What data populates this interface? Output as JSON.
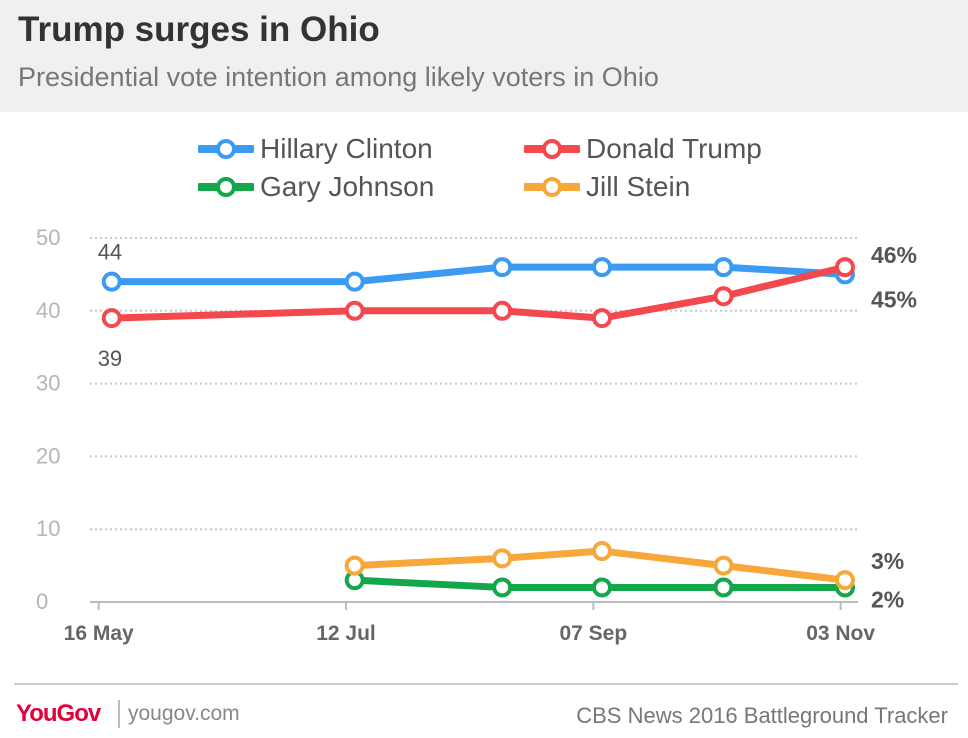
{
  "header": {
    "title": "Trump surges in Ohio",
    "subtitle": "Presidential vote intention among likely voters in Ohio"
  },
  "footer": {
    "logo": "YouGov",
    "site": "yougov.com",
    "source": "CBS News 2016 Battleground Tracker"
  },
  "chart_data": {
    "type": "line",
    "title": "Trump surges in Ohio",
    "subtitle": "Presidential vote intention among likely voters in Ohio",
    "xlabel": "",
    "ylabel": "",
    "ylim": [
      0,
      50
    ],
    "yticks": [
      0,
      10,
      20,
      30,
      40,
      50
    ],
    "grid": true,
    "legend_position": "top",
    "x_ticks": [
      {
        "label": "16 May",
        "date": "2016-05-16"
      },
      {
        "label": "12 Jul",
        "date": "2016-07-12"
      },
      {
        "label": "07 Sep",
        "date": "2016-09-07"
      },
      {
        "label": "03 Nov",
        "date": "2016-11-03"
      }
    ],
    "series": [
      {
        "name": "Hillary Clinton",
        "color": "#3b9af2",
        "points": [
          {
            "date": "2016-05-19",
            "value": 44
          },
          {
            "date": "2016-07-14",
            "value": 44
          },
          {
            "date": "2016-08-17",
            "value": 46
          },
          {
            "date": "2016-09-09",
            "value": 46
          },
          {
            "date": "2016-10-07",
            "value": 46
          },
          {
            "date": "2016-11-04",
            "value": 45
          }
        ]
      },
      {
        "name": "Donald Trump",
        "color": "#f4484f",
        "points": [
          {
            "date": "2016-05-19",
            "value": 39
          },
          {
            "date": "2016-07-14",
            "value": 40
          },
          {
            "date": "2016-08-17",
            "value": 40
          },
          {
            "date": "2016-09-09",
            "value": 39
          },
          {
            "date": "2016-10-07",
            "value": 42
          },
          {
            "date": "2016-11-04",
            "value": 46
          }
        ]
      },
      {
        "name": "Gary Johnson",
        "color": "#13a74b",
        "points": [
          {
            "date": "2016-07-14",
            "value": 3
          },
          {
            "date": "2016-08-17",
            "value": 2
          },
          {
            "date": "2016-09-09",
            "value": 2
          },
          {
            "date": "2016-10-07",
            "value": 2
          },
          {
            "date": "2016-11-04",
            "value": 2
          }
        ]
      },
      {
        "name": "Jill Stein",
        "color": "#f8a83a",
        "points": [
          {
            "date": "2016-07-14",
            "value": 5
          },
          {
            "date": "2016-08-17",
            "value": 6
          },
          {
            "date": "2016-09-09",
            "value": 7
          },
          {
            "date": "2016-10-07",
            "value": 5
          },
          {
            "date": "2016-11-04",
            "value": 3
          }
        ]
      }
    ],
    "annotations": [
      {
        "text": "44",
        "series": "Hillary Clinton",
        "point": 0,
        "position": "above"
      },
      {
        "text": "39",
        "series": "Donald Trump",
        "point": 0,
        "position": "below"
      },
      {
        "text": "46%",
        "series": "Donald Trump",
        "point": 5,
        "position": "right"
      },
      {
        "text": "45%",
        "series": "Hillary Clinton",
        "point": 5,
        "position": "right"
      },
      {
        "text": "3%",
        "series": "Jill Stein",
        "point": 4,
        "position": "right"
      },
      {
        "text": "2%",
        "series": "Gary Johnson",
        "point": 4,
        "position": "right"
      }
    ]
  }
}
